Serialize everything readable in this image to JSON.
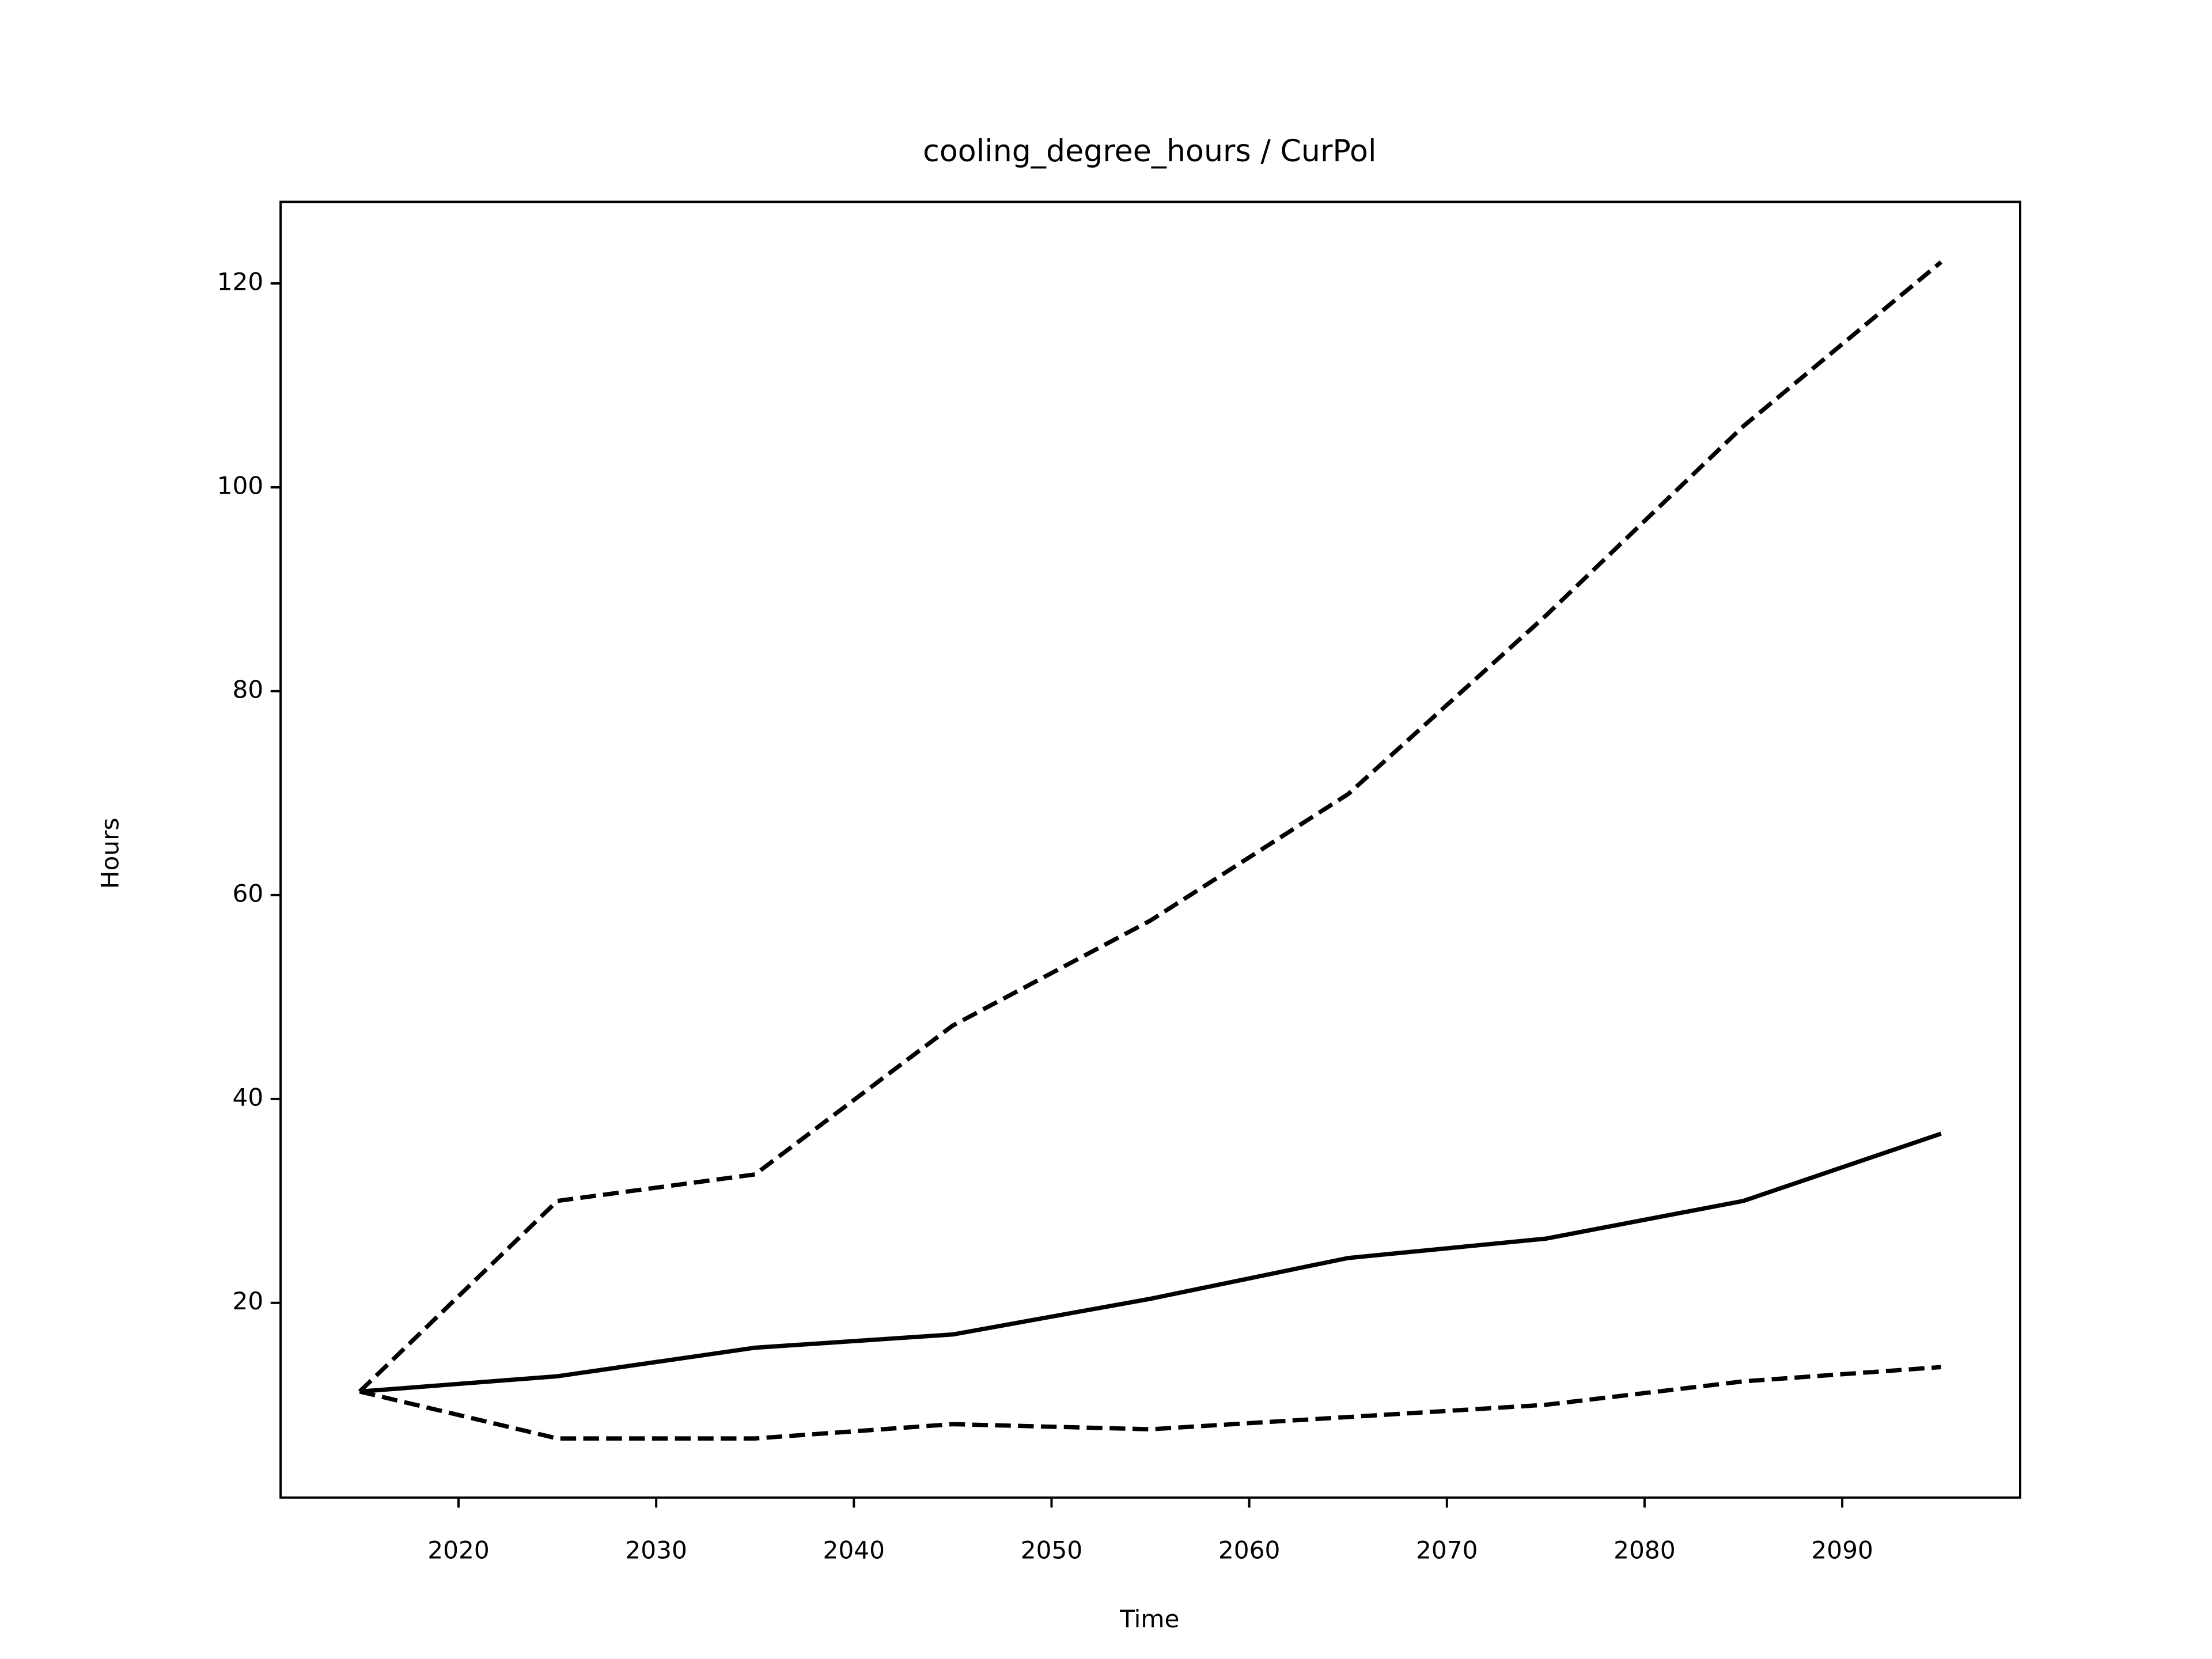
{
  "chart_data": {
    "type": "line",
    "title": "cooling_degree_hours / CurPol",
    "x_label": "Time",
    "y_label": "Hours",
    "x": [
      2015,
      2025,
      2035,
      2045,
      2055,
      2065,
      2075,
      2085,
      2095
    ],
    "series": [
      {
        "color": "#000000",
        "linestyle": "solid",
        "values": [
          11.3,
          12.8,
          15.6,
          16.9,
          20.4,
          24.4,
          26.3,
          30.0,
          36.6
        ]
      },
      {
        "color": "#000000",
        "linestyle": "dashed",
        "values": [
          11.3,
          30.0,
          32.6,
          47.2,
          57.5,
          69.9,
          87.4,
          106.0,
          122.1
        ]
      },
      {
        "color": "#000000",
        "linestyle": "dashed",
        "values": [
          11.3,
          6.7,
          6.7,
          8.1,
          7.6,
          8.8,
          10.0,
          12.3,
          13.7
        ]
      }
    ],
    "xlim": [
      2011,
      2099
    ],
    "xticks": [
      2020,
      2030,
      2040,
      2050,
      2060,
      2070,
      2080,
      2090
    ],
    "ylim": [
      0.9,
      128
    ],
    "yticks": [
      20,
      40,
      60,
      80,
      100,
      120
    ],
    "grid": false
  }
}
